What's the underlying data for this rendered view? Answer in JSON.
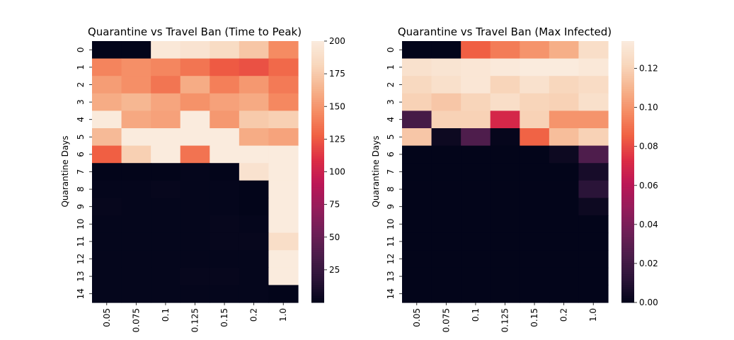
{
  "colorscale": {
    "name": "rocket",
    "stops": [
      "#03051a",
      "#2b1438",
      "#4c1d4b",
      "#701f57",
      "#961c5b",
      "#bc1656",
      "#dc2d45",
      "#f06043",
      "#f58c63",
      "#f6b48e",
      "#f8d7bd",
      "#faebdd"
    ]
  },
  "chart_data": [
    {
      "type": "heatmap",
      "title": "Quarantine vs Travel Ban (Time to Peak)",
      "xlabel": "",
      "ylabel": "Quarantine Days",
      "x_categories": [
        "0.05",
        "0.075",
        "0.1",
        "0.125",
        "0.15",
        "0.2",
        "1.0"
      ],
      "y_categories": [
        "0",
        "1",
        "2",
        "3",
        "4",
        "5",
        "6",
        "7",
        "8",
        "9",
        "10",
        "11",
        "12",
        "13",
        "14"
      ],
      "vmin": 0,
      "vmax": 200,
      "colorbar_ticks": [
        25,
        50,
        75,
        100,
        125,
        150,
        175,
        200
      ],
      "values": [
        [
          0,
          0,
          197,
          193,
          186,
          173,
          145
        ],
        [
          142,
          147,
          143,
          136,
          125,
          122,
          131
        ],
        [
          153,
          147,
          136,
          160,
          140,
          151,
          138
        ],
        [
          160,
          165,
          157,
          148,
          155,
          159,
          144
        ],
        [
          199,
          158,
          155,
          200,
          151,
          175,
          178
        ],
        [
          167,
          200,
          200,
          200,
          200,
          160,
          156
        ],
        [
          127,
          178,
          200,
          135,
          200,
          200,
          200
        ],
        [
          0,
          0,
          0,
          1,
          0,
          192,
          200
        ],
        [
          1,
          1,
          2,
          1,
          1,
          0,
          200
        ],
        [
          2,
          1,
          1,
          1,
          1,
          0,
          200
        ],
        [
          1,
          1,
          1,
          1,
          2,
          1,
          200
        ],
        [
          1,
          1,
          1,
          1,
          2,
          2,
          188
        ],
        [
          1,
          1,
          1,
          1,
          1,
          1,
          200
        ],
        [
          1,
          1,
          1,
          2,
          2,
          1,
          200
        ],
        [
          1,
          1,
          1,
          1,
          1,
          1,
          0
        ]
      ]
    },
    {
      "type": "heatmap",
      "title": "Quarantine vs Travel Ban (Max Infected)",
      "xlabel": "",
      "ylabel": "Quarantine Days",
      "x_categories": [
        "0.05",
        "0.075",
        "0.1",
        "0.125",
        "0.15",
        "0.2",
        "1.0"
      ],
      "y_categories": [
        "0",
        "1",
        "2",
        "3",
        "4",
        "5",
        "6",
        "7",
        "8",
        "9",
        "10",
        "11",
        "12",
        "13",
        "14"
      ],
      "vmin": 0,
      "vmax": 0.134,
      "colorbar_ticks": [
        0.0,
        0.02,
        0.04,
        0.06,
        0.08,
        0.1,
        0.12
      ],
      "values": [
        [
          0.0,
          0.0,
          0.085,
          0.093,
          0.1,
          0.108,
          0.126
        ],
        [
          0.128,
          0.13,
          0.131,
          0.133,
          0.134,
          0.134,
          0.132
        ],
        [
          0.123,
          0.127,
          0.131,
          0.121,
          0.128,
          0.122,
          0.125
        ],
        [
          0.12,
          0.116,
          0.121,
          0.126,
          0.121,
          0.12,
          0.127
        ],
        [
          0.022,
          0.12,
          0.12,
          0.07,
          0.12,
          0.1,
          0.1
        ],
        [
          0.116,
          0.003,
          0.025,
          0.001,
          0.086,
          0.113,
          0.12
        ],
        [
          0.0,
          0.0,
          0.0,
          0.0,
          0.0,
          0.003,
          0.025
        ],
        [
          0.0,
          0.0,
          0.0,
          0.0,
          0.0,
          0.0,
          0.006
        ],
        [
          0.0,
          0.0,
          0.0,
          0.0,
          0.0,
          0.0,
          0.012
        ],
        [
          0.0,
          0.0,
          0.0,
          0.0,
          0.0,
          0.0,
          0.003
        ],
        [
          0.0,
          0.0,
          0.0,
          0.0,
          0.0,
          0.0,
          0.0
        ],
        [
          0.0,
          0.0,
          0.0,
          0.0,
          0.0,
          0.0,
          0.0
        ],
        [
          0.0,
          0.0,
          0.0,
          0.0,
          0.0,
          0.0,
          0.0
        ],
        [
          0.0,
          0.0,
          0.0,
          0.0,
          0.0,
          0.0,
          0.0
        ],
        [
          0.0,
          0.0,
          0.0,
          0.0,
          0.0,
          0.0,
          0.0
        ]
      ]
    }
  ]
}
